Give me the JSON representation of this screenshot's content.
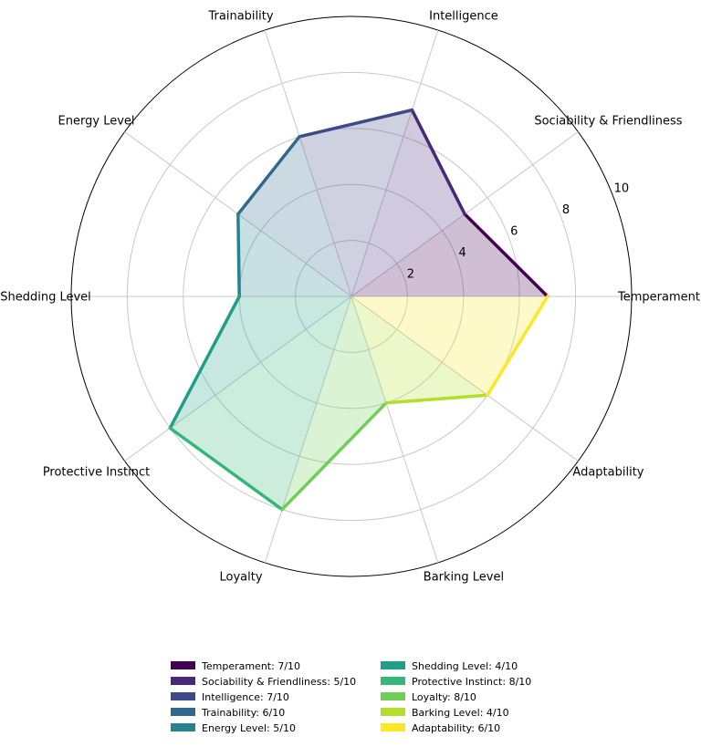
{
  "chart_data": {
    "type": "radar",
    "title": "",
    "categories": [
      "Temperament",
      "Sociability & Friendliness",
      "Intelligence",
      "Trainability",
      "Energy Level",
      "Shedding Level",
      "Protective Instinct",
      "Loyalty",
      "Barking Level",
      "Adaptability"
    ],
    "values": [
      7,
      5,
      7,
      6,
      5,
      4,
      8,
      8,
      4,
      6
    ],
    "colors": [
      "#440154",
      "#482878",
      "#3e4989",
      "#31688e",
      "#26828e",
      "#1f9e89",
      "#35b779",
      "#6ece58",
      "#b5de2b",
      "#fde725"
    ],
    "radial_ticks": [
      "2",
      "4",
      "6",
      "8",
      "10"
    ],
    "rlim": [
      0,
      10
    ],
    "grid": true,
    "legend": {
      "placement": "bottom",
      "columns": 2,
      "entries": [
        "Temperament: 7/10",
        "Sociability & Friendliness: 5/10",
        "Intelligence: 7/10",
        "Trainability: 6/10",
        "Energy Level: 5/10",
        "Shedding Level: 4/10",
        "Protective Instinct: 8/10",
        "Loyalty: 8/10",
        "Barking Level: 4/10",
        "Adaptability: 6/10"
      ]
    }
  }
}
